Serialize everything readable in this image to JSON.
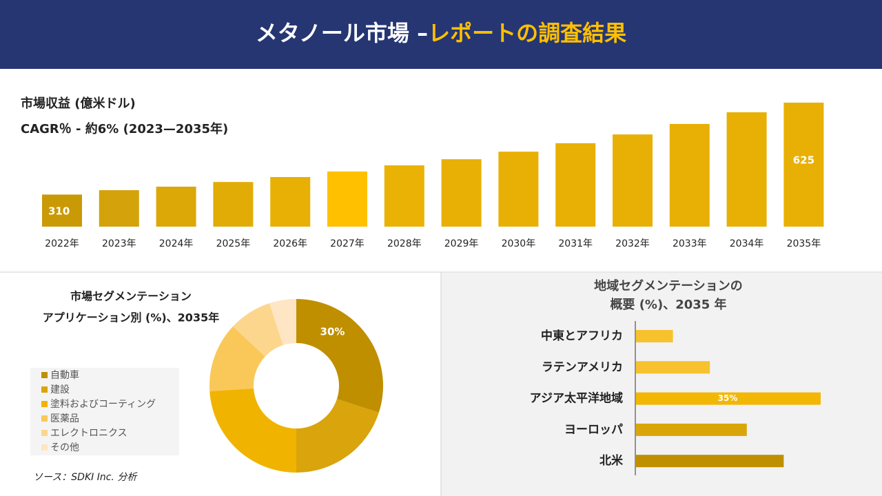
{
  "header": {
    "title_main": "メタノール市場 –",
    "title_accent": "レポートの調査結果"
  },
  "source": "ソース：SDKI Inc. 分析",
  "chart_data": [
    {
      "type": "bar",
      "title": "市場収益 (億米ドル)",
      "subtitle": "CAGR％ - 約6% (2023—2035年)",
      "categories": [
        "2022年",
        "2023年",
        "2024年",
        "2025年",
        "2026年",
        "2027年",
        "2028年",
        "2029年",
        "2030年",
        "2031年",
        "2032年",
        "2033年",
        "2034年",
        "2035年"
      ],
      "values": [
        310,
        325,
        337,
        353,
        370,
        389,
        410,
        431,
        457,
        486,
        516,
        552,
        592,
        625
      ],
      "value_labels": [
        "310",
        null,
        null,
        null,
        null,
        null,
        null,
        null,
        null,
        null,
        null,
        null,
        null,
        "625"
      ],
      "colors": [
        "#C99A06",
        "#D4A20A",
        "#DCA808",
        "#E2AC06",
        "#E8B004",
        "#FFC000",
        "#EAB204",
        "#E8B004",
        "#E8B004",
        "#E8B004",
        "#E8B004",
        "#E8B004",
        "#E8B004",
        "#E8B004"
      ],
      "ylim": [
        200,
        625
      ]
    },
    {
      "type": "donut",
      "title": [
        "市場セグメンテーション",
        "アプリケーション別 (%)、2035年"
      ],
      "categories": [
        "自動車",
        "建設",
        "塗料およびコーティング",
        "医薬品",
        "エレクトロニクス",
        "その他"
      ],
      "values": [
        30,
        20,
        24,
        13,
        8,
        5
      ],
      "value_labels": [
        "30%",
        null,
        null,
        null,
        null,
        null
      ],
      "colors": [
        "#BF8F00",
        "#D9A40C",
        "#F0B400",
        "#FAC858",
        "#FDD68E",
        "#FEE6C4"
      ]
    },
    {
      "type": "hbar",
      "title": [
        "地域セグメンテーションの",
        "概要 (%)、2035 年"
      ],
      "categories": [
        "中東とアフリカ",
        "ラテンアメリカ",
        "アジア太平洋地域",
        "ヨーロッパ",
        "北米"
      ],
      "values": [
        7,
        14,
        35,
        21,
        28
      ],
      "value_labels": [
        null,
        null,
        "35%",
        null,
        null
      ],
      "colors": [
        "#F7C22E",
        "#F7C22E",
        "#F2B705",
        "#D9A60A",
        "#BF8F00"
      ],
      "xlim": [
        0,
        35
      ]
    }
  ]
}
